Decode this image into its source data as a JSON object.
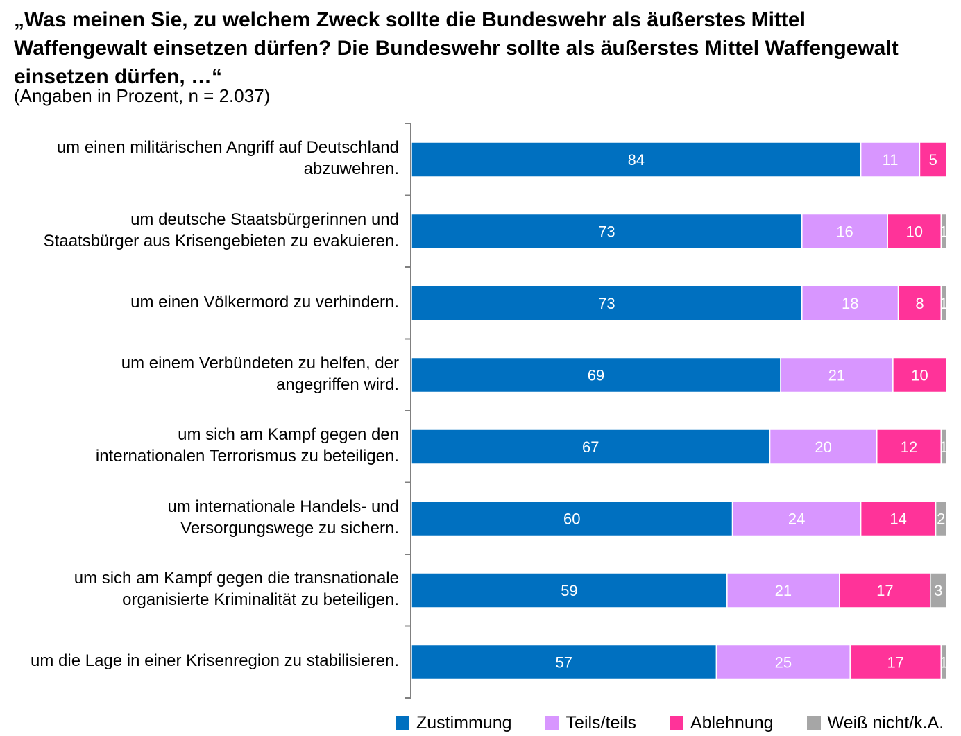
{
  "chart_data": {
    "type": "bar",
    "orientation": "horizontal",
    "stacked": true,
    "title": "„Was meinen Sie, zu welchem Zweck sollte die Bundeswehr als äußerstes Mittel Waffengewalt einsetzen dürfen? Die Bundeswehr sollte als äußerstes Mittel Waffengewalt einsetzen dürfen, …“",
    "subtitle": "(Angaben in Prozent, n = 2.037)",
    "categories": [
      "um einen militärischen Angriff auf Deutschland\nabzuwehren.",
      "um deutsche Staatsbürgerinnen und\nStaatsbürger aus Krisengebieten zu evakuieren.",
      "um einen Völkermord zu verhindern.",
      "um einem Verbündeten zu helfen, der\nangegriffen wird.",
      "um sich am Kampf gegen den\ninternationalen Terrorismus zu beteiligen.",
      "um internationale Handels- und\nVersorgungswege zu sichern.",
      "um sich am Kampf gegen die transnationale\norganisierte Kriminalität zu beteiligen.",
      "um die Lage in einer Krisenregion zu stabilisieren."
    ],
    "series": [
      {
        "name": "Zustimmung",
        "color": "#0070C0",
        "values": [
          84,
          73,
          73,
          69,
          67,
          60,
          59,
          57
        ]
      },
      {
        "name": "Teils/teils",
        "color": "#D896FF",
        "values": [
          11,
          16,
          18,
          21,
          20,
          24,
          21,
          25
        ]
      },
      {
        "name": "Ablehnung",
        "color": "#FF3399",
        "values": [
          5,
          10,
          8,
          10,
          12,
          14,
          17,
          17
        ]
      },
      {
        "name": "Weiß nicht/k.A.",
        "color": "#A6A6A6",
        "values": [
          0,
          1,
          1,
          0,
          1,
          2,
          3,
          1
        ]
      }
    ],
    "xlim": [
      0,
      100
    ],
    "xlabel": "",
    "ylabel": "",
    "grid": false,
    "legend_position": "bottom"
  }
}
